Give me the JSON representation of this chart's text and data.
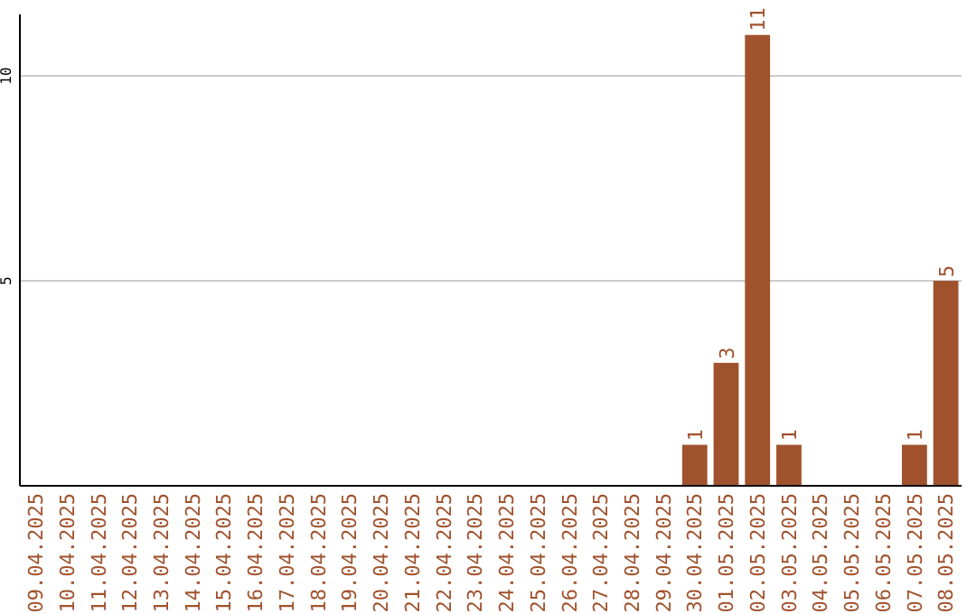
{
  "chart_data": {
    "type": "bar",
    "categories": [
      "09.04.2025",
      "10.04.2025",
      "11.04.2025",
      "12.04.2025",
      "13.04.2025",
      "14.04.2025",
      "15.04.2025",
      "16.04.2025",
      "17.04.2025",
      "18.04.2025",
      "19.04.2025",
      "20.04.2025",
      "21.04.2025",
      "22.04.2025",
      "23.04.2025",
      "24.04.2025",
      "25.04.2025",
      "26.04.2025",
      "27.04.2025",
      "28.04.2025",
      "29.04.2025",
      "30.04.2025",
      "01.05.2025",
      "02.05.2025",
      "03.05.2025",
      "04.05.2025",
      "05.05.2025",
      "06.05.2025",
      "07.05.2025",
      "08.05.2025"
    ],
    "values": [
      0,
      0,
      0,
      0,
      0,
      0,
      0,
      0,
      0,
      0,
      0,
      0,
      0,
      0,
      0,
      0,
      0,
      0,
      0,
      0,
      0,
      1,
      3,
      11,
      1,
      0,
      0,
      0,
      1,
      5
    ],
    "value_labels": [
      null,
      null,
      null,
      null,
      null,
      null,
      null,
      null,
      null,
      null,
      null,
      null,
      null,
      null,
      null,
      null,
      null,
      null,
      null,
      null,
      null,
      "1",
      "3",
      "11",
      "1",
      null,
      null,
      null,
      "1",
      "5"
    ],
    "color": "#a0522d",
    "ylim": [
      0,
      11.5
    ],
    "yticks": [
      5,
      10
    ],
    "grid": "y"
  }
}
